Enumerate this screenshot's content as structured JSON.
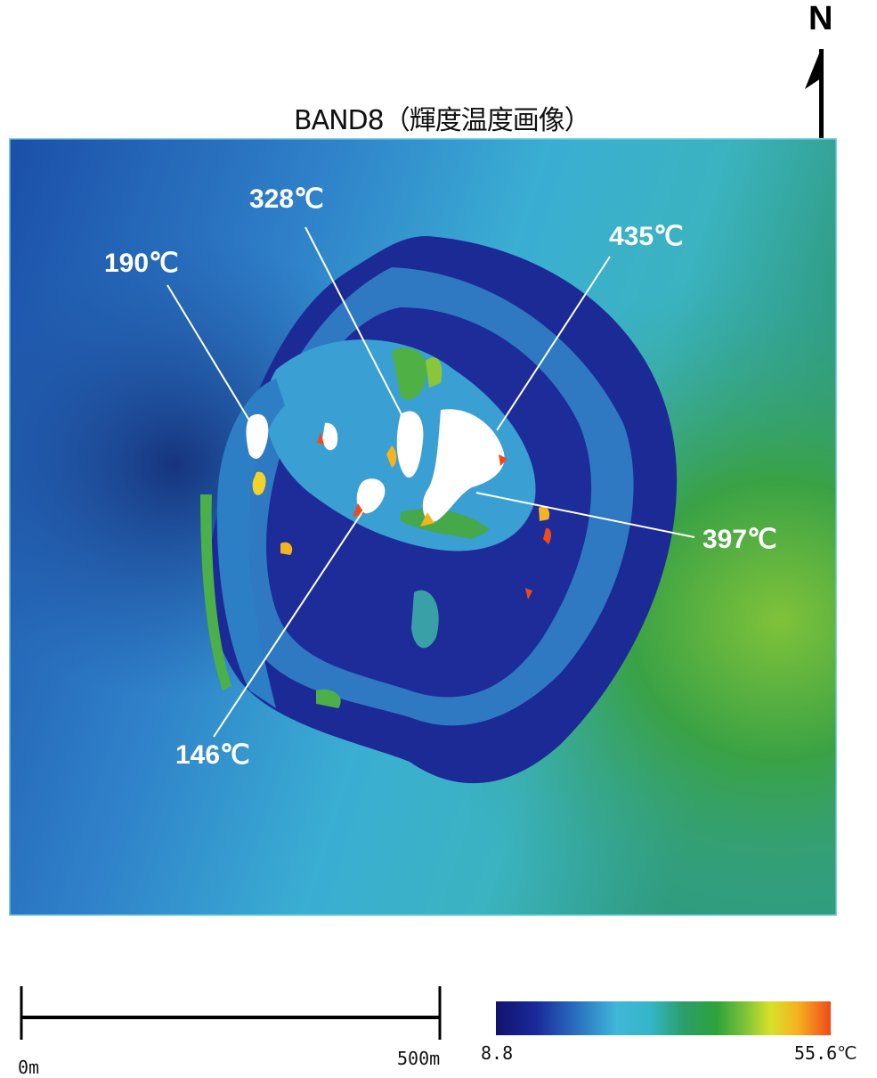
{
  "title": "BAND8（輝度温度画像）",
  "north_label": "N",
  "scale": {
    "start_label": "0m",
    "end_label": "500m"
  },
  "colorbar": {
    "min_label": "8.8",
    "max_label": "55.6℃",
    "min": 8.8,
    "max": 55.6,
    "unit": "℃",
    "colors": [
      "#12126e",
      "#2a6fc0",
      "#3fb7d8",
      "#2ea23a",
      "#d8e02a",
      "#ef4a1c"
    ]
  },
  "annotations": [
    {
      "id": "t190",
      "label": "190℃"
    },
    {
      "id": "t328",
      "label": "328℃"
    },
    {
      "id": "t435",
      "label": "435℃"
    },
    {
      "id": "t397",
      "label": "397℃"
    },
    {
      "id": "t146",
      "label": "146℃"
    }
  ]
}
